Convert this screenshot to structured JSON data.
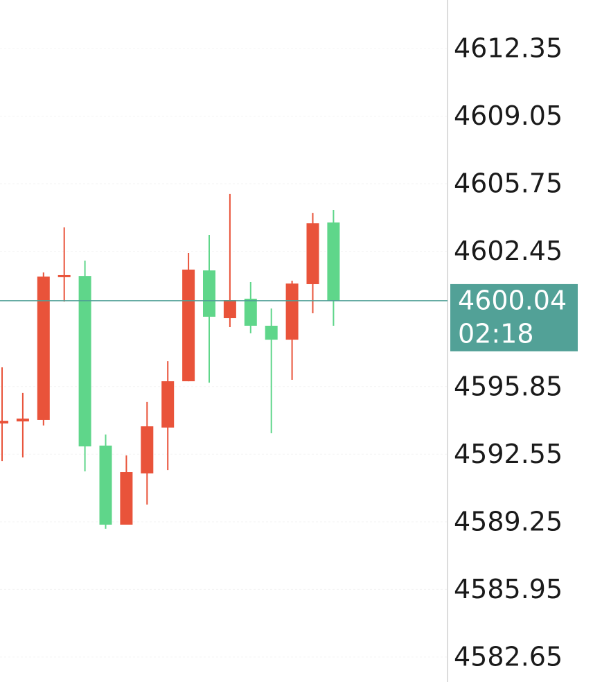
{
  "chart_data": {
    "type": "candlestick",
    "categories": [
      null,
      null,
      null,
      null,
      null,
      null,
      null,
      null,
      null,
      null,
      null,
      null,
      null,
      null,
      null,
      null,
      null
    ],
    "open": [
      4594.05,
      4594.15,
      4594.22,
      4601.19,
      4601.25,
      4592.97,
      4589.11,
      4591.61,
      4593.85,
      4596.11,
      4601.52,
      4599.19,
      4600.14,
      4598.82,
      4598.14,
      4600.85,
      4603.86
    ],
    "high": [
      4596.79,
      4595.54,
      4601.42,
      4603.62,
      4602.0,
      4593.51,
      4592.49,
      4595.1,
      4597.09,
      4602.37,
      4603.25,
      4605.25,
      4600.95,
      4599.66,
      4601.02,
      4604.33,
      4604.47
    ],
    "low": [
      4592.22,
      4592.39,
      4593.95,
      4600.0,
      4591.71,
      4588.91,
      4589.11,
      4590.09,
      4591.78,
      4596.11,
      4596.04,
      4598.75,
      4598.45,
      4593.57,
      4596.18,
      4599.43,
      4598.82
    ],
    "close": [
      4594.18,
      4594.29,
      4601.22,
      4601.29,
      4592.93,
      4589.11,
      4591.68,
      4593.91,
      4596.11,
      4601.56,
      4599.26,
      4600.07,
      4598.82,
      4598.14,
      4600.88,
      4603.82,
      4600.04
    ],
    "up_color": "#e9533a",
    "down_color": "#5fd68a",
    "ylim": [
      4581.43,
      4614.72
    ],
    "yticks": [
      4612.35,
      4609.05,
      4605.75,
      4602.45,
      4595.85,
      4592.55,
      4589.25,
      4585.95,
      4582.65
    ],
    "grid": true,
    "last_price": 4600.04,
    "countdown": "02:18",
    "last_price_color": "#52a197"
  }
}
